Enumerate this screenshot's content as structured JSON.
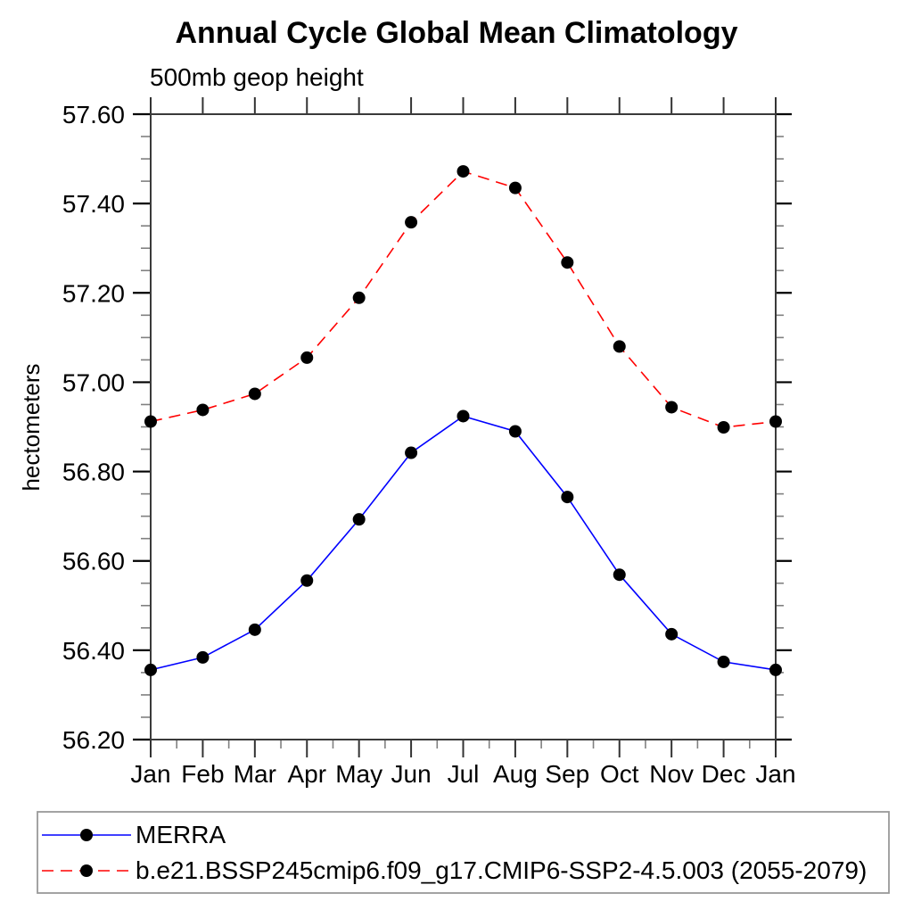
{
  "chart_data": {
    "type": "line",
    "title": "Annual Cycle Global Mean Climatology",
    "subtitle": "500mb geop height",
    "xlabel": "",
    "ylabel": "hectometers",
    "categories": [
      "Jan",
      "Feb",
      "Mar",
      "Apr",
      "May",
      "Jun",
      "Jul",
      "Aug",
      "Sep",
      "Oct",
      "Nov",
      "Dec",
      "Jan"
    ],
    "series": [
      {
        "name": "MERRA",
        "color": "#0000ff",
        "line_style": "solid",
        "marker": "filled-circle",
        "marker_color": "#000000",
        "values": [
          56.356,
          56.384,
          56.446,
          56.556,
          56.693,
          56.842,
          56.924,
          56.89,
          56.743,
          56.569,
          56.436,
          56.374,
          56.356
        ]
      },
      {
        "name": "b.e21.BSSP245cmip6.f09_g17.CMIP6-SSP2-4.5.003 (2055-2079)",
        "color": "#ff0000",
        "line_style": "dashed",
        "marker": "filled-circle",
        "marker_color": "#000000",
        "values": [
          56.912,
          56.938,
          56.974,
          57.055,
          57.189,
          57.358,
          57.472,
          57.435,
          57.268,
          57.08,
          56.944,
          56.899,
          56.912
        ]
      }
    ],
    "ylim": [
      56.2,
      57.6
    ],
    "ytick_major_step": 0.2,
    "ytick_minor_step": 0.05,
    "ytick_labels": [
      "56.20",
      "56.40",
      "56.60",
      "56.80",
      "57.00",
      "57.20",
      "57.40",
      "57.60"
    ],
    "grid": false,
    "legend_position": "bottom-left-box"
  },
  "colors": {
    "merra_line": "#0000ff",
    "model_line": "#ff0000",
    "marker": "#000000",
    "frame": "#3a3a3a",
    "minor_tick": "#808080",
    "legend_border": "#999999"
  }
}
